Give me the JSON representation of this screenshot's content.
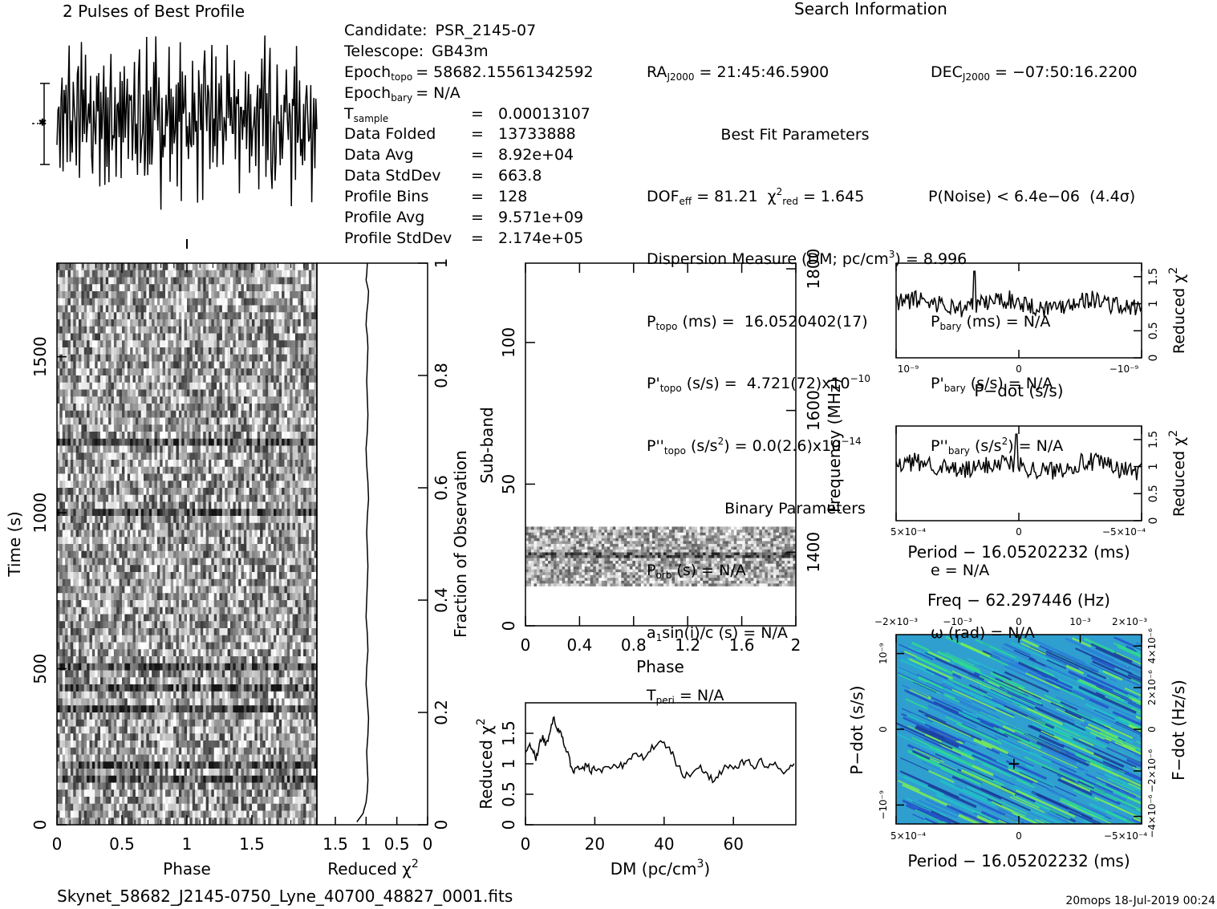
{
  "title_profile": "2 Pulses of Best Profile",
  "title_search": "Search Information",
  "candidate_info": [
    {
      "label": "Candidate:",
      "value": "PSR_2145-07"
    },
    {
      "label": "Telescope:",
      "value": "GB43m"
    },
    {
      "label": "Epoch",
      "sub": "topo",
      "value": "= 58682.15561342592"
    },
    {
      "label": "Epoch",
      "sub": "bary",
      "value": "= N/A"
    },
    {
      "label": "T",
      "sub": "sample",
      "value": "= 0.00013107"
    },
    {
      "label": "Data Folded",
      "value": "= 13733888"
    },
    {
      "label": "Data Avg",
      "value": "= 8.92e+04"
    },
    {
      "label": "Data StdDev",
      "value": "= 663.8"
    },
    {
      "label": "Profile Bins",
      "value": "= 128"
    },
    {
      "label": "Profile Avg",
      "value": "= 9.571e+09"
    },
    {
      "label": "Profile StdDev",
      "value": "= 2.174e+05"
    }
  ],
  "search_info": {
    "ra": "RA_J2000 = 21:45:46.5900",
    "dec": "DEC_J2000 = -07:50:16.2200",
    "best_fit_heading": "Best Fit Parameters",
    "dof": "DOF_eff = 81.21",
    "chi2": "chi2_red = 1.645",
    "pnoise": "P(Noise) < 6.4e-06 (4.4sigma)",
    "dm": "Dispersion Measure (DM; pc/cm3) = 8.996",
    "ptopo": "P_topo (ms) = 16.0520402(17)",
    "pbary": "P_bary (ms) = N/A",
    "pdot_topo": "P'_topo (s/s) = 4.721(72)x10^-10",
    "pdot_bary": "P'_bary (s/s) = N/A",
    "pddot_topo": "P''_topo (s/s2) = 0.0(2.6)x10^-14",
    "pddot_bary": "P''_bary (s/s2) = N/A",
    "binary_heading": "Binary Parameters",
    "porb": "P_orb (s) = N/A",
    "ecc": "e = N/A",
    "asini": "a1sin(i)/c (s) = N/A",
    "omega": "omega (rad) = N/A",
    "tperi": "T_peri = N/A"
  },
  "footer_filename": "Skynet_58682_J2145-0750_Lyne_40700_48827_0001.fits",
  "footer_stamp": "20mops  18-Jul-2019 00:24",
  "chart_data": [
    {
      "type": "line",
      "panel": "profile",
      "title": "2 Pulses of Best Profile",
      "xlim": [
        0,
        2
      ],
      "note_values_estimated": true,
      "values": [
        0.35,
        -0.4,
        0.8,
        -0.6,
        0.2,
        1.1,
        -0.9,
        0.4,
        -0.2,
        0.9,
        -1.3,
        0.6,
        1.4,
        -0.5,
        0.3,
        -1.1,
        0.7,
        1.2,
        -0.3,
        -1.0,
        0.5,
        0.9,
        -0.7,
        0.1,
        1.3,
        -0.8,
        0.6,
        -0.4,
        1.0,
        -1.2,
        0.2,
        0.8,
        -0.6,
        1.5,
        -0.2,
        -0.9,
        0.7,
        0.3,
        -1.3,
        1.1,
        -0.1,
        0.6,
        -0.8,
        1.2,
        -0.5,
        0.4,
        1.6,
        -1.0,
        0.2,
        -0.3,
        0.9,
        -1.2,
        0.5,
        1.0,
        -0.7,
        0.3,
        -0.2,
        1.3,
        -1.1,
        0.6,
        0.8,
        -0.4,
        1.1,
        -0.9
      ]
    },
    {
      "type": "heatmap",
      "panel": "time-phase",
      "xlabel": "Phase",
      "ylabel": "Time (s)",
      "right_ylabel": "Fraction of Observation",
      "xticks": [
        "0",
        "0.5",
        "1",
        "1.5"
      ],
      "yticks": [
        "0",
        "500",
        "1000",
        "1500"
      ],
      "right_yticks": [
        "0",
        "0.2",
        "0.4",
        "0.6",
        "0.8",
        "1"
      ],
      "xlim": [
        0,
        2
      ],
      "ylim": [
        0,
        1800
      ],
      "right_ylim": [
        0,
        1
      ]
    },
    {
      "type": "line",
      "panel": "time-chi2",
      "xlabel": "Reduced χ²",
      "xticks": [
        "1.5",
        "1",
        "0.5",
        "0"
      ],
      "xlim": [
        1.8,
        0
      ],
      "note_values_estimated": true,
      "x": [
        1.15,
        1.05,
        1.0,
        0.98,
        0.97,
        0.98,
        0.99,
        0.97,
        0.96,
        0.98,
        1.0,
        0.99,
        0.97,
        0.98,
        1.0,
        0.99,
        0.98,
        0.97,
        0.98,
        0.99,
        0.98,
        0.96,
        0.97,
        0.99,
        1.0,
        0.98,
        0.97,
        0.98,
        0.99,
        0.98,
        0.97,
        0.98,
        1.0,
        0.99,
        0.97,
        0.96,
        0.98,
        1.0,
        0.99,
        0.98
      ],
      "y_fraction": [
        0.005,
        0.02,
        0.04,
        0.06,
        0.08,
        0.1,
        0.13,
        0.16,
        0.19,
        0.22,
        0.25,
        0.28,
        0.31,
        0.34,
        0.37,
        0.4,
        0.43,
        0.46,
        0.49,
        0.52,
        0.55,
        0.58,
        0.61,
        0.64,
        0.67,
        0.7,
        0.73,
        0.76,
        0.79,
        0.82,
        0.85,
        0.87,
        0.89,
        0.91,
        0.93,
        0.95,
        0.96,
        0.97,
        0.98,
        1.0
      ]
    },
    {
      "type": "heatmap",
      "panel": "subband-phase",
      "xlabel": "Phase",
      "ylabel": "Sub-band",
      "right_ylabel": "Frequency (MHz)",
      "xticks": [
        "0",
        "0.4",
        "0.8",
        "1.2",
        "1.6",
        "2"
      ],
      "yticks": [
        "0",
        "50",
        "100"
      ],
      "right_yticks": [
        "1400",
        "1600",
        "1800"
      ],
      "xlim": [
        0,
        2
      ],
      "ylim": [
        0,
        128
      ],
      "right_ylim": [
        1296,
        1808
      ],
      "occupied_subbands": [
        14,
        35
      ]
    },
    {
      "type": "line",
      "panel": "dm-chi2",
      "xlabel": "DM (pc/cm³)",
      "ylabel": "Reduced χ²",
      "xticks": [
        "0",
        "20",
        "40",
        "60"
      ],
      "yticks": [
        "0",
        "0.5",
        "1",
        "1.5"
      ],
      "xlim": [
        0,
        78
      ],
      "ylim": [
        0,
        2.0
      ],
      "note_values_estimated": true,
      "x": [
        0,
        1,
        2,
        3,
        4,
        5,
        6,
        7,
        8,
        9,
        10,
        11,
        12,
        13,
        14,
        15,
        16,
        17,
        18,
        19,
        20,
        22,
        24,
        26,
        28,
        30,
        32,
        34,
        36,
        38,
        40,
        42,
        44,
        46,
        48,
        50,
        52,
        54,
        56,
        58,
        60,
        62,
        64,
        66,
        68,
        70,
        72,
        74,
        76,
        78
      ],
      "y": [
        1.15,
        1.3,
        1.25,
        1.1,
        1.3,
        1.45,
        1.3,
        1.55,
        1.75,
        1.6,
        1.5,
        1.35,
        1.2,
        1.0,
        0.9,
        0.95,
        0.9,
        0.95,
        1.0,
        0.85,
        0.95,
        0.9,
        0.95,
        1.0,
        0.95,
        1.05,
        1.2,
        1.1,
        1.25,
        1.3,
        1.35,
        1.2,
        0.95,
        0.8,
        0.85,
        0.95,
        0.85,
        0.75,
        0.85,
        0.95,
        0.9,
        1.0,
        1.05,
        0.9,
        1.05,
        0.95,
        1.0,
        0.85,
        0.9,
        1.0
      ]
    },
    {
      "type": "line",
      "panel": "pdot-chi2",
      "xlabel": "P−dot (s/s)",
      "ylabel": "Reduced χ²",
      "xticks": [
        "10⁻⁹",
        "0",
        "−10⁻⁹"
      ],
      "yticks": [
        "0",
        "0.5",
        "1",
        "1.5"
      ],
      "ylim": [
        0,
        1.75
      ],
      "note_values_estimated": true,
      "noise_level": 1.0,
      "peak_fraction": 0.32,
      "peak_value": 1.6
    },
    {
      "type": "line",
      "panel": "period-chi2",
      "xlabel": "Period − 16.05202232 (ms)",
      "ylabel": "Reduced χ²",
      "xticks": [
        "5×10⁻⁴",
        "0",
        "−5×10⁻⁴"
      ],
      "yticks": [
        "0",
        "0.5",
        "1",
        "1.5"
      ],
      "ylim": [
        0,
        1.75
      ],
      "note_values_estimated": true,
      "noise_level": 1.0,
      "peak_fraction": 0.49,
      "peak_value": 1.6
    },
    {
      "type": "heatmap",
      "panel": "period-pdot",
      "top_label": "Freq − 62.297446 (Hz)",
      "xlabel": "Period − 16.05202232 (ms)",
      "ylabel": "P−dot (s/s)",
      "right_ylabel": "F−dot (Hz/s)",
      "xticks": [
        "5×10⁻⁴",
        "0",
        "−5×10⁻⁴"
      ],
      "top_ticks": [
        "−2×10⁻³",
        "−10⁻³",
        "0",
        "10⁻³",
        "2×10⁻³"
      ],
      "yticks": [
        "10⁻⁹",
        "0",
        "−10⁻⁹"
      ],
      "right_yticks": [
        "−4×10⁻⁶",
        "−2×10⁻⁶",
        "0",
        "2×10⁻⁶",
        "4×10⁻⁶"
      ],
      "best_marker_fraction": [
        0.48,
        0.68
      ]
    }
  ]
}
